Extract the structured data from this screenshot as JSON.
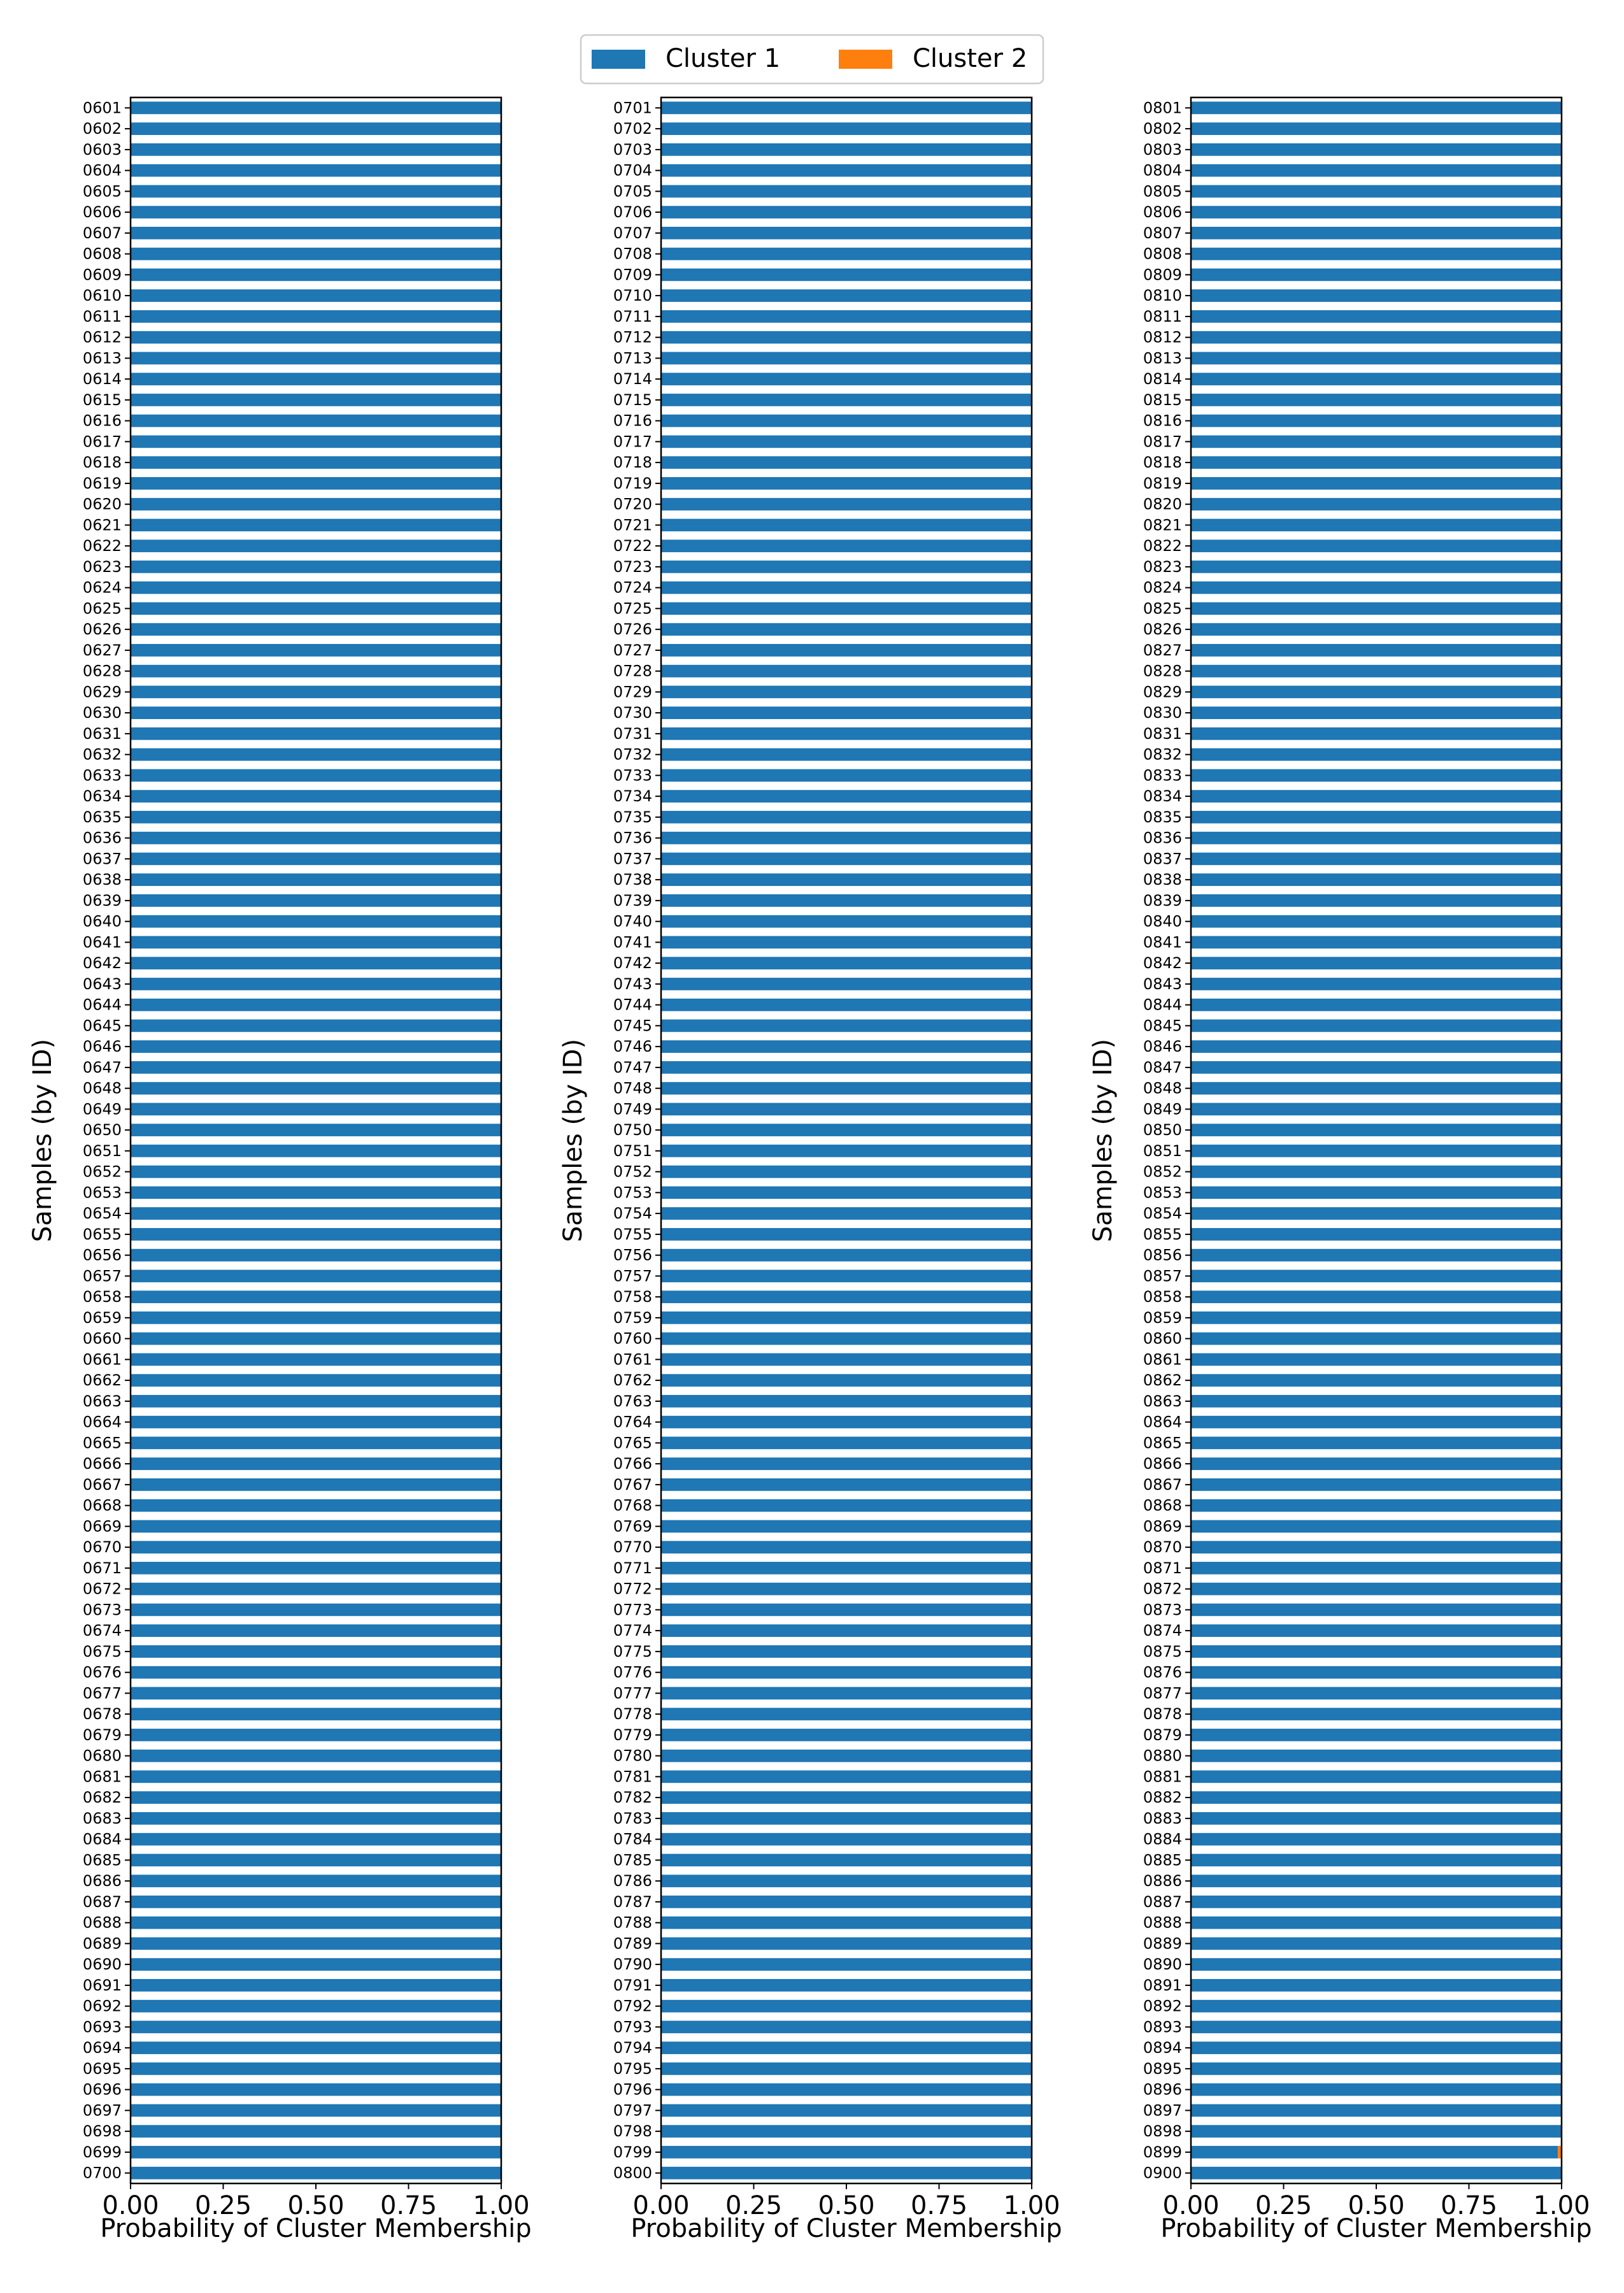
{
  "legend": {
    "placement": "top-center",
    "entries": [
      {
        "label": "Cluster 1",
        "color": "#1f77b4"
      },
      {
        "label": "Cluster 2",
        "color": "#ff7f0e"
      }
    ]
  },
  "chart_data": [
    {
      "type": "bar",
      "orientation": "horizontal",
      "stacked": true,
      "xlabel": "Probability of Cluster Membership",
      "ylabel": "Samples (by ID)",
      "xlim": [
        0,
        1
      ],
      "xticks": [
        "0.00",
        "0.25",
        "0.50",
        "0.75",
        "1.00"
      ],
      "id_start": 601,
      "id_end": 700,
      "categories": [
        "0601",
        "0602",
        "0603",
        "0604",
        "0605",
        "0606",
        "0607",
        "0608",
        "0609",
        "0610",
        "0611",
        "0612",
        "0613",
        "0614",
        "0615",
        "0616",
        "0617",
        "0618",
        "0619",
        "0620",
        "0621",
        "0622",
        "0623",
        "0624",
        "0625",
        "0626",
        "0627",
        "0628",
        "0629",
        "0630",
        "0631",
        "0632",
        "0633",
        "0634",
        "0635",
        "0636",
        "0637",
        "0638",
        "0639",
        "0640",
        "0641",
        "0642",
        "0643",
        "0644",
        "0645",
        "0646",
        "0647",
        "0648",
        "0649",
        "0650",
        "0651",
        "0652",
        "0653",
        "0654",
        "0655",
        "0656",
        "0657",
        "0658",
        "0659",
        "0660",
        "0661",
        "0662",
        "0663",
        "0664",
        "0665",
        "0666",
        "0667",
        "0668",
        "0669",
        "0670",
        "0671",
        "0672",
        "0673",
        "0674",
        "0675",
        "0676",
        "0677",
        "0678",
        "0679",
        "0680",
        "0681",
        "0682",
        "0683",
        "0684",
        "0685",
        "0686",
        "0687",
        "0688",
        "0689",
        "0690",
        "0691",
        "0692",
        "0693",
        "0694",
        "0695",
        "0696",
        "0697",
        "0698",
        "0699",
        "0700"
      ],
      "series": [
        {
          "name": "Cluster 1",
          "default": 1.0,
          "exceptions": {}
        },
        {
          "name": "Cluster 2",
          "default": 0.0,
          "exceptions": {}
        }
      ]
    },
    {
      "type": "bar",
      "orientation": "horizontal",
      "stacked": true,
      "xlabel": "Probability of Cluster Membership",
      "ylabel": "Samples (by ID)",
      "xlim": [
        0,
        1
      ],
      "xticks": [
        "0.00",
        "0.25",
        "0.50",
        "0.75",
        "1.00"
      ],
      "id_start": 701,
      "id_end": 800,
      "categories": [
        "0701",
        "0702",
        "0703",
        "0704",
        "0705",
        "0706",
        "0707",
        "0708",
        "0709",
        "0710",
        "0711",
        "0712",
        "0713",
        "0714",
        "0715",
        "0716",
        "0717",
        "0718",
        "0719",
        "0720",
        "0721",
        "0722",
        "0723",
        "0724",
        "0725",
        "0726",
        "0727",
        "0728",
        "0729",
        "0730",
        "0731",
        "0732",
        "0733",
        "0734",
        "0735",
        "0736",
        "0737",
        "0738",
        "0739",
        "0740",
        "0741",
        "0742",
        "0743",
        "0744",
        "0745",
        "0746",
        "0747",
        "0748",
        "0749",
        "0750",
        "0751",
        "0752",
        "0753",
        "0754",
        "0755",
        "0756",
        "0757",
        "0758",
        "0759",
        "0760",
        "0761",
        "0762",
        "0763",
        "0764",
        "0765",
        "0766",
        "0767",
        "0768",
        "0769",
        "0770",
        "0771",
        "0772",
        "0773",
        "0774",
        "0775",
        "0776",
        "0777",
        "0778",
        "0779",
        "0780",
        "0781",
        "0782",
        "0783",
        "0784",
        "0785",
        "0786",
        "0787",
        "0788",
        "0789",
        "0790",
        "0791",
        "0792",
        "0793",
        "0794",
        "0795",
        "0796",
        "0797",
        "0798",
        "0799",
        "0800"
      ],
      "series": [
        {
          "name": "Cluster 1",
          "default": 1.0,
          "exceptions": {}
        },
        {
          "name": "Cluster 2",
          "default": 0.0,
          "exceptions": {}
        }
      ]
    },
    {
      "type": "bar",
      "orientation": "horizontal",
      "stacked": true,
      "xlabel": "Probability of Cluster Membership",
      "ylabel": "Samples (by ID)",
      "xlim": [
        0,
        1
      ],
      "xticks": [
        "0.00",
        "0.25",
        "0.50",
        "0.75",
        "1.00"
      ],
      "id_start": 801,
      "id_end": 900,
      "categories": [
        "0801",
        "0802",
        "0803",
        "0804",
        "0805",
        "0806",
        "0807",
        "0808",
        "0809",
        "0810",
        "0811",
        "0812",
        "0813",
        "0814",
        "0815",
        "0816",
        "0817",
        "0818",
        "0819",
        "0820",
        "0821",
        "0822",
        "0823",
        "0824",
        "0825",
        "0826",
        "0827",
        "0828",
        "0829",
        "0830",
        "0831",
        "0832",
        "0833",
        "0834",
        "0835",
        "0836",
        "0837",
        "0838",
        "0839",
        "0840",
        "0841",
        "0842",
        "0843",
        "0844",
        "0845",
        "0846",
        "0847",
        "0848",
        "0849",
        "0850",
        "0851",
        "0852",
        "0853",
        "0854",
        "0855",
        "0856",
        "0857",
        "0858",
        "0859",
        "0860",
        "0861",
        "0862",
        "0863",
        "0864",
        "0865",
        "0866",
        "0867",
        "0868",
        "0869",
        "0870",
        "0871",
        "0872",
        "0873",
        "0874",
        "0875",
        "0876",
        "0877",
        "0878",
        "0879",
        "0880",
        "0881",
        "0882",
        "0883",
        "0884",
        "0885",
        "0886",
        "0887",
        "0888",
        "0889",
        "0890",
        "0891",
        "0892",
        "0893",
        "0894",
        "0895",
        "0896",
        "0897",
        "0898",
        "0899",
        "0900"
      ],
      "series": [
        {
          "name": "Cluster 1",
          "default": 1.0,
          "exceptions": {
            "0899": 0.99
          }
        },
        {
          "name": "Cluster 2",
          "default": 0.0,
          "exceptions": {
            "0899": 0.01
          }
        }
      ]
    }
  ]
}
